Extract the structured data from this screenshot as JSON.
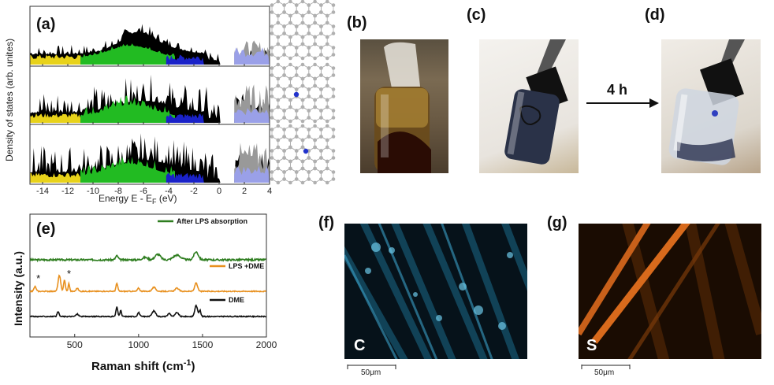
{
  "panels": {
    "a": {
      "label": "(a)"
    },
    "b": {
      "label": "(b)"
    },
    "c": {
      "label": "(c)"
    },
    "d": {
      "label": "(d)"
    },
    "e": {
      "label": "(e)"
    },
    "f": {
      "label": "(f)",
      "element": "C",
      "scale_bar": "50μm"
    },
    "g": {
      "label": "(g)",
      "element": "S",
      "scale_bar": "50μm"
    }
  },
  "arrow_label": "4 h",
  "chart_data": [
    {
      "type": "area",
      "panel": "a",
      "xlabel": "Energy E - E",
      "xlabel_sub": "F",
      "xlabel_unit": " (eV)",
      "ylabel": "Density of states (arb. unites)",
      "xlim": [
        -15,
        4
      ],
      "xticks": [
        -14,
        -12,
        -10,
        -8,
        -6,
        -4,
        -2,
        0,
        2,
        4
      ],
      "subplots": 3,
      "colors": {
        "total": "#000000",
        "green": "#22bb22",
        "yellow": "#e8d21a",
        "blue": "#1a22c8",
        "gray": "#999999",
        "lavender": "#9aa0e8"
      }
    },
    {
      "type": "line",
      "panel": "e",
      "xlabel": "Raman shift (cm",
      "xlabel_sup": "-1",
      "xlabel_end": ")",
      "ylabel": "Intensity (a.u.)",
      "xlim": [
        150,
        2000
      ],
      "xticks": [
        500,
        1000,
        1500,
        2000
      ],
      "series": [
        {
          "name": "After LPS absorption",
          "color": "#2e7d1f"
        },
        {
          "name": "LPS +DME",
          "color": "#e8901e"
        },
        {
          "name": "DME",
          "color": "#111111"
        }
      ],
      "annotations": [
        "*",
        "*"
      ]
    }
  ]
}
